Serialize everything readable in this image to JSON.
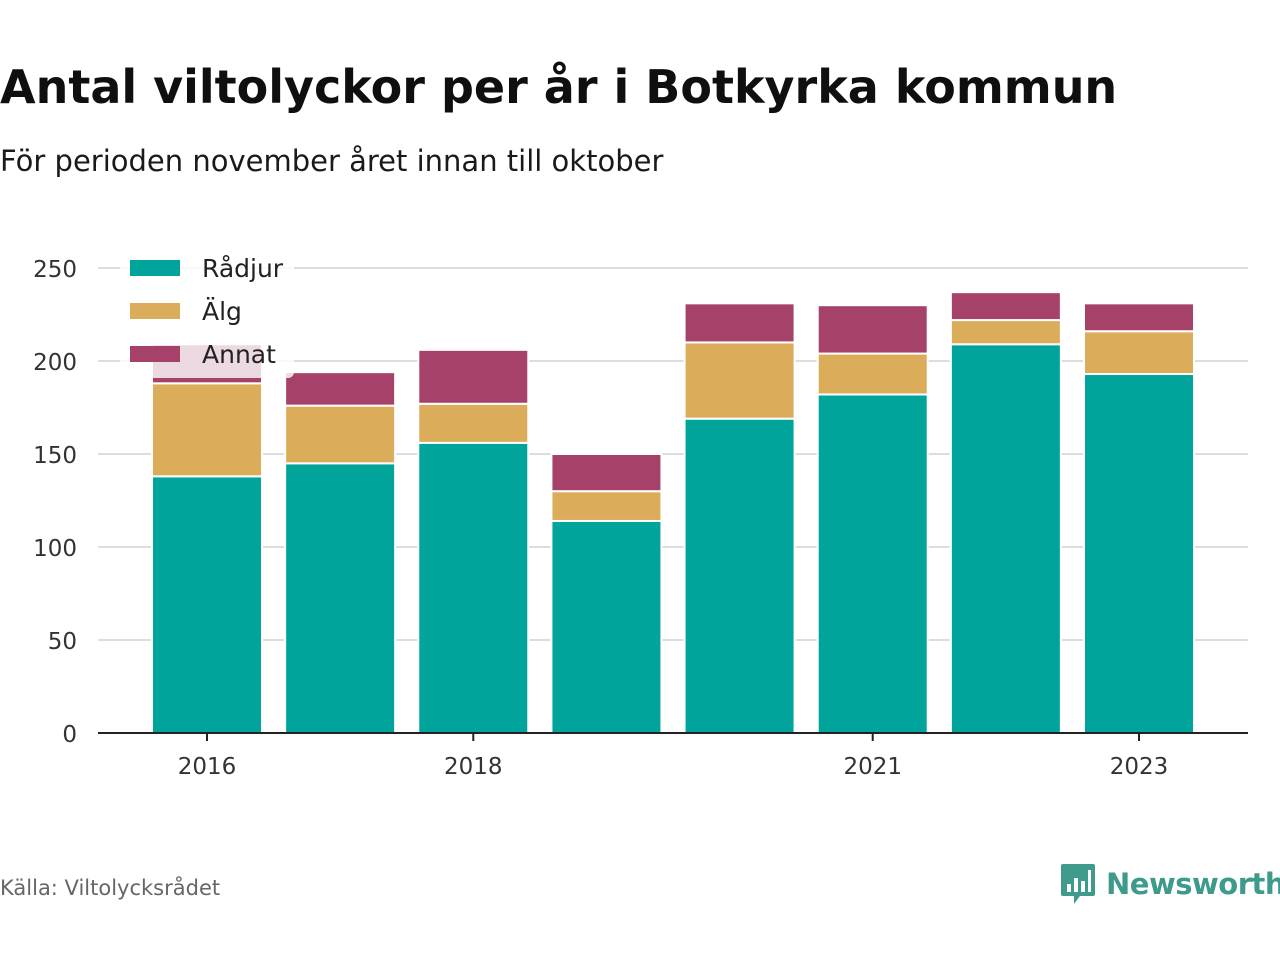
{
  "title": "Antal viltolyckor per år i Botkyrka kommun",
  "subtitle": "För perioden november året innan till oktober",
  "source": "Källa: Viltolycksrådet",
  "brand": {
    "name": "Newsworthy",
    "icon": "newsworthy-logo-icon",
    "color": "#3e9a8b"
  },
  "chart_data": {
    "type": "bar",
    "stacked": true,
    "categories": [
      "2016",
      "2017",
      "2018",
      "2019",
      "2020",
      "2021",
      "2022",
      "2023"
    ],
    "x_tick_labels": [
      "2016",
      "2018",
      "2021",
      "2023"
    ],
    "series": [
      {
        "name": "Rådjur",
        "color": "#00a49a",
        "values": [
          138,
          145,
          156,
          114,
          169,
          182,
          209,
          193
        ]
      },
      {
        "name": "Älg",
        "color": "#dbad5a",
        "values": [
          50,
          31,
          21,
          16,
          41,
          22,
          13,
          23
        ]
      },
      {
        "name": "Annat",
        "color": "#a6426a",
        "values": [
          21,
          18,
          29,
          20,
          21,
          26,
          15,
          15
        ]
      }
    ],
    "ylim": [
      0,
      250
    ],
    "yticks": [
      0,
      50,
      100,
      150,
      200,
      250
    ],
    "grid": true,
    "legend": "top-left"
  }
}
